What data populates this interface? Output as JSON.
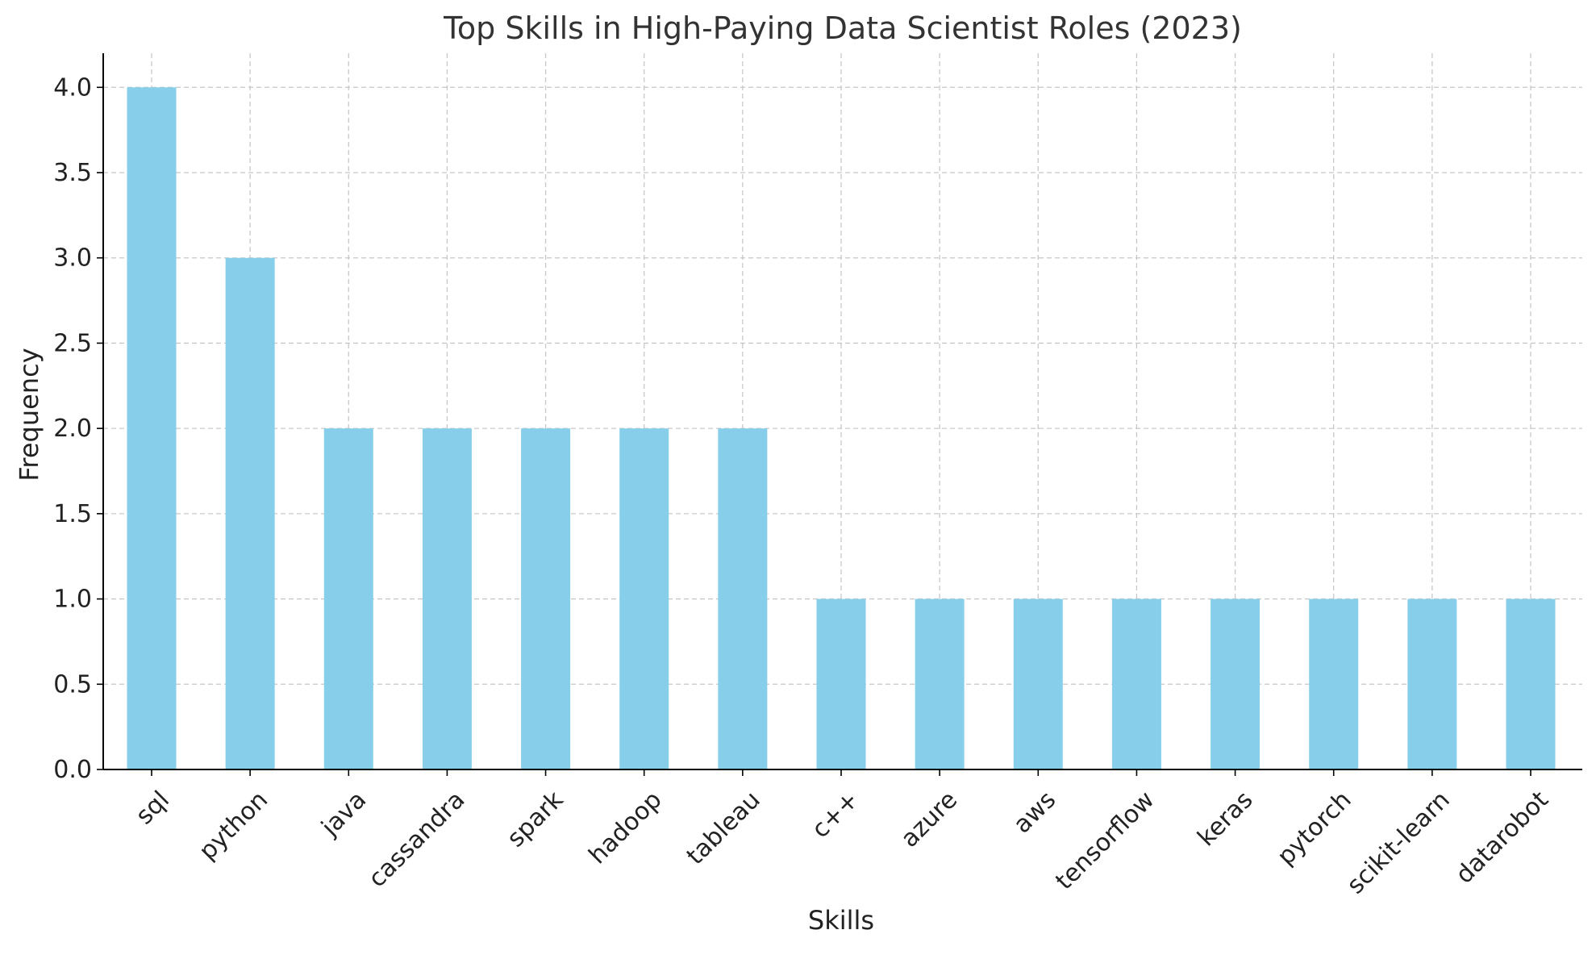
{
  "chart_data": {
    "type": "bar",
    "title": "Top Skills in High-Paying Data Scientist Roles (2023)",
    "xlabel": "Skills",
    "ylabel": "Frequency",
    "categories": [
      "sql",
      "python",
      "java",
      "cassandra",
      "spark",
      "hadoop",
      "tableau",
      "c++",
      "azure",
      "aws",
      "tensorflow",
      "keras",
      "pytorch",
      "scikit-learn",
      "datarobot"
    ],
    "values": [
      4,
      3,
      2,
      2,
      2,
      2,
      2,
      1,
      1,
      1,
      1,
      1,
      1,
      1,
      1
    ],
    "ylim": [
      0,
      4.2
    ],
    "yticks": [
      "0.0",
      "0.5",
      "1.0",
      "1.5",
      "2.0",
      "2.5",
      "3.0",
      "3.5",
      "4.0"
    ],
    "grid": true,
    "bar_color": "#87ceeb"
  }
}
